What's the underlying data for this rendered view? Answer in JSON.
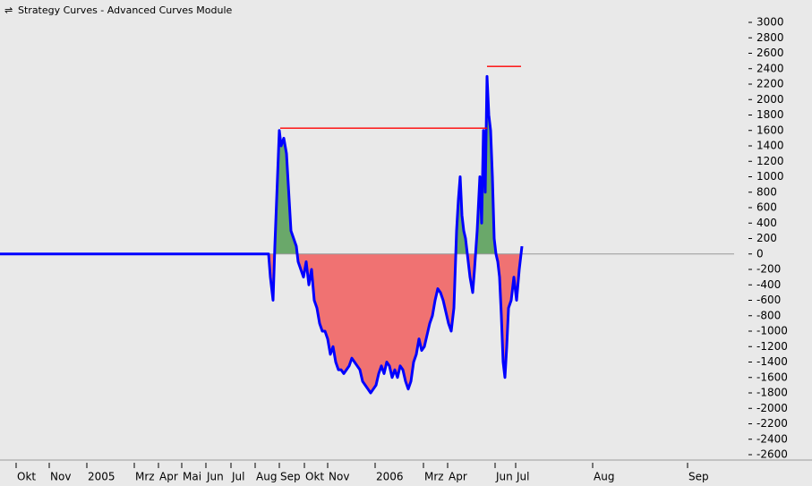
{
  "chart_data": {
    "type": "line",
    "title": "Strategy Curves - Advanced Curves Module",
    "xlim": [
      0,
      820
    ],
    "xticks": [
      {
        "value": 18,
        "label": "Okt"
      },
      {
        "value": 55,
        "label": "Nov"
      },
      {
        "value": 97,
        "label": "2005"
      },
      {
        "value": 150,
        "label": "Mrz"
      },
      {
        "value": 177,
        "label": "Apr"
      },
      {
        "value": 203,
        "label": "Mai"
      },
      {
        "value": 230,
        "label": "Jun"
      },
      {
        "value": 258,
        "label": "Jul"
      },
      {
        "value": 285,
        "label": "Aug"
      },
      {
        "value": 312,
        "label": "Sep"
      },
      {
        "value": 340,
        "label": "Okt"
      },
      {
        "value": 366,
        "label": "Nov"
      },
      {
        "value": 419,
        "label": "2006"
      },
      {
        "value": 473,
        "label": "Mrz"
      },
      {
        "value": 500,
        "label": "Apr"
      },
      {
        "value": 553,
        "label": "Jun"
      },
      {
        "value": 576,
        "label": "Jul"
      },
      {
        "value": 662,
        "label": "Aug"
      },
      {
        "value": 768,
        "label": "Sep"
      }
    ],
    "ylim": [
      -2600,
      3000
    ],
    "yticks": [
      3000,
      2800,
      2600,
      2400,
      2200,
      2000,
      1800,
      1600,
      1400,
      1200,
      1000,
      800,
      600,
      400,
      200,
      0,
      -200,
      -400,
      -600,
      -800,
      -1000,
      -1200,
      -1400,
      -1600,
      -1800,
      -2000,
      -2200,
      -2400,
      -2600
    ],
    "series": [
      {
        "color": "#0000ff",
        "fill_above": "#6aa86a",
        "fill_below": "#f07272",
        "x": [
          0,
          300,
          302,
          305,
          307,
          310,
          312,
          314,
          317,
          320,
          322,
          325,
          328,
          331,
          333,
          336,
          339,
          342,
          345,
          348,
          351,
          354,
          357,
          360,
          363,
          366,
          369,
          372,
          375,
          378,
          381,
          384,
          387,
          390,
          393,
          396,
          399,
          402,
          405,
          408,
          411,
          414,
          417,
          420,
          423,
          426,
          429,
          432,
          435,
          438,
          441,
          444,
          447,
          450,
          453,
          456,
          459,
          462,
          465,
          468,
          471,
          474,
          477,
          480,
          483,
          486,
          489,
          492,
          495,
          498,
          501,
          504,
          507,
          510,
          512,
          514,
          516,
          518,
          520,
          522,
          525,
          528,
          530,
          533,
          536,
          538,
          540,
          542,
          544,
          546,
          548,
          550,
          552,
          554,
          556,
          558,
          560,
          562,
          564,
          566,
          568,
          571,
          574,
          577,
          580,
          583
        ],
        "values": [
          0,
          0,
          -300,
          -600,
          100,
          1000,
          1600,
          1400,
          1500,
          1300,
          900,
          300,
          200,
          100,
          -100,
          -200,
          -300,
          -100,
          -400,
          -200,
          -600,
          -700,
          -900,
          -1000,
          -1000,
          -1100,
          -1300,
          -1200,
          -1400,
          -1500,
          -1500,
          -1550,
          -1500,
          -1450,
          -1350,
          -1400,
          -1450,
          -1500,
          -1650,
          -1700,
          -1750,
          -1800,
          -1750,
          -1700,
          -1550,
          -1450,
          -1550,
          -1400,
          -1450,
          -1600,
          -1500,
          -1600,
          -1450,
          -1500,
          -1650,
          -1750,
          -1650,
          -1400,
          -1300,
          -1100,
          -1250,
          -1200,
          -1050,
          -900,
          -800,
          -600,
          -450,
          -500,
          -600,
          -750,
          -900,
          -1000,
          -700,
          300,
          700,
          1000,
          500,
          300,
          200,
          0,
          -300,
          -500,
          -200,
          300,
          1000,
          400,
          1600,
          800,
          2300,
          1800,
          1600,
          1000,
          200,
          0,
          -100,
          -300,
          -800,
          -1400,
          -1600,
          -1200,
          -700,
          -600,
          -300,
          -600,
          -200,
          100
        ]
      }
    ],
    "peak_lines": {
      "color": "#ff0000",
      "segments": [
        {
          "x": [
            313,
            544
          ],
          "y": 1630
        },
        {
          "x": [
            544,
            582
          ],
          "y": 2430
        }
      ]
    }
  }
}
